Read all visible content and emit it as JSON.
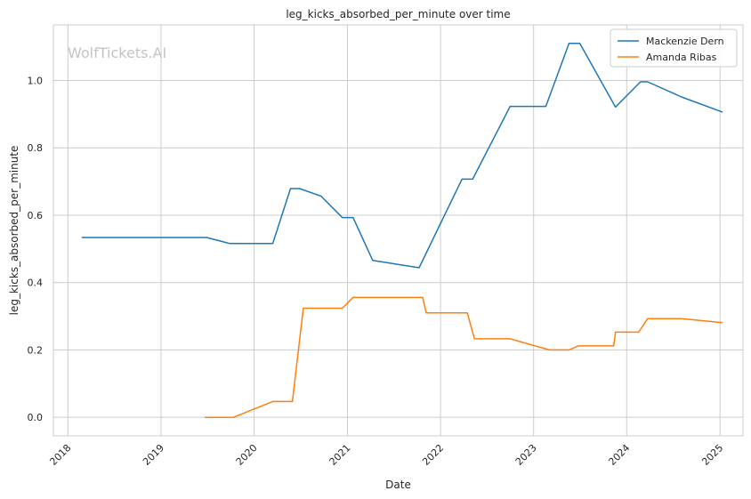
{
  "chart_data": {
    "type": "line",
    "title": "leg_kicks_absorbed_per_minute over time",
    "xlabel": "Date",
    "ylabel": "leg_kicks_absorbed_per_minute",
    "watermark": "WolfTickets.AI",
    "xlim": [
      "2017-11-05",
      "2025-04-01"
    ],
    "ylim": [
      -0.055,
      1.165
    ],
    "x_ticks": [
      "2018-01-01",
      "2019-01-01",
      "2020-01-01",
      "2021-01-01",
      "2022-01-01",
      "2023-01-01",
      "2024-01-01",
      "2025-01-01"
    ],
    "x_tick_labels": [
      "2018",
      "2019",
      "2020",
      "2021",
      "2022",
      "2023",
      "2024",
      "2025"
    ],
    "y_ticks": [
      0.0,
      0.2,
      0.4,
      0.6,
      0.8,
      1.0
    ],
    "y_tick_labels": [
      "0.0",
      "0.2",
      "0.4",
      "0.6",
      "0.8",
      "1.0"
    ],
    "grid": true,
    "legend_position": "top-right",
    "series": [
      {
        "name": "Mackenzie Dern",
        "color": "#1f77b4",
        "points": [
          {
            "x": "2018-02-24",
            "y": 0.534
          },
          {
            "x": "2019-06-29",
            "y": 0.534
          },
          {
            "x": "2019-09-28",
            "y": 0.516
          },
          {
            "x": "2020-03-14",
            "y": 0.516
          },
          {
            "x": "2020-05-23",
            "y": 0.679
          },
          {
            "x": "2020-06-27",
            "y": 0.679
          },
          {
            "x": "2020-09-19",
            "y": 0.657
          },
          {
            "x": "2020-12-12",
            "y": 0.593
          },
          {
            "x": "2021-01-23",
            "y": 0.593
          },
          {
            "x": "2021-04-10",
            "y": 0.466
          },
          {
            "x": "2021-10-09",
            "y": 0.444
          },
          {
            "x": "2022-03-26",
            "y": 0.707
          },
          {
            "x": "2022-05-07",
            "y": 0.707
          },
          {
            "x": "2022-10-01",
            "y": 0.923
          },
          {
            "x": "2023-02-18",
            "y": 0.923
          },
          {
            "x": "2023-05-20",
            "y": 1.11
          },
          {
            "x": "2023-07-01",
            "y": 1.11
          },
          {
            "x": "2023-11-18",
            "y": 0.921
          },
          {
            "x": "2024-02-24",
            "y": 0.996
          },
          {
            "x": "2024-03-23",
            "y": 0.996
          },
          {
            "x": "2024-08-03",
            "y": 0.951
          },
          {
            "x": "2025-01-11",
            "y": 0.906
          }
        ]
      },
      {
        "name": "Amanda Ribas",
        "color": "#ff7f0e",
        "points": [
          {
            "x": "2019-06-22",
            "y": 0.0
          },
          {
            "x": "2019-10-12",
            "y": 0.0
          },
          {
            "x": "2020-03-14",
            "y": 0.047
          },
          {
            "x": "2020-05-30",
            "y": 0.047
          },
          {
            "x": "2020-07-12",
            "y": 0.324
          },
          {
            "x": "2020-12-12",
            "y": 0.324
          },
          {
            "x": "2021-01-23",
            "y": 0.356
          },
          {
            "x": "2021-10-23",
            "y": 0.356
          },
          {
            "x": "2021-11-06",
            "y": 0.31
          },
          {
            "x": "2022-04-16",
            "y": 0.31
          },
          {
            "x": "2022-05-14",
            "y": 0.233
          },
          {
            "x": "2022-10-01",
            "y": 0.233
          },
          {
            "x": "2023-03-04",
            "y": 0.2
          },
          {
            "x": "2023-05-20",
            "y": 0.2
          },
          {
            "x": "2023-06-24",
            "y": 0.212
          },
          {
            "x": "2023-11-11",
            "y": 0.212
          },
          {
            "x": "2023-11-18",
            "y": 0.253
          },
          {
            "x": "2024-02-17",
            "y": 0.253
          },
          {
            "x": "2024-03-23",
            "y": 0.293
          },
          {
            "x": "2024-08-03",
            "y": 0.293
          },
          {
            "x": "2025-01-11",
            "y": 0.281
          }
        ]
      }
    ]
  }
}
